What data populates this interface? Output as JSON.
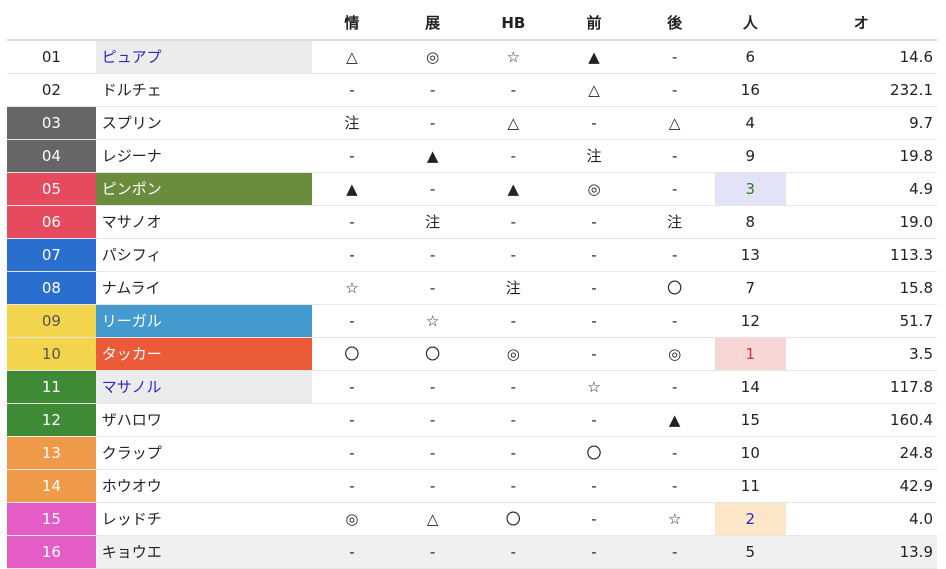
{
  "headers": [
    "",
    "",
    "情",
    "展",
    "HB",
    "前",
    "後",
    "人",
    "オ"
  ],
  "rows": [
    {
      "num": "01",
      "name": "ピュアプ",
      "marks": [
        "△",
        "◎",
        "☆",
        "▲",
        "-"
      ],
      "pop": "6",
      "odds": "14.6",
      "num_bg": "#ffffff",
      "num_color": "#222222",
      "name_bg": "#ececec",
      "name_color": "#2a2ac8",
      "pop_bg": "",
      "pop_color": ""
    },
    {
      "num": "02",
      "name": "ドルチェ",
      "marks": [
        "-",
        "-",
        "-",
        "△",
        "-"
      ],
      "pop": "16",
      "odds": "232.1",
      "num_bg": "#ffffff",
      "num_color": "#222222",
      "name_bg": "",
      "name_color": "",
      "pop_bg": "",
      "pop_color": ""
    },
    {
      "num": "03",
      "name": "スプリン",
      "marks": [
        "注",
        "-",
        "△",
        "-",
        "△"
      ],
      "pop": "4",
      "odds": "9.7",
      "num_bg": "#666666",
      "num_color": "#ffffff",
      "name_bg": "",
      "name_color": "",
      "pop_bg": "",
      "pop_color": ""
    },
    {
      "num": "04",
      "name": "レジーナ",
      "marks": [
        "-",
        "▲",
        "-",
        "注",
        "-"
      ],
      "pop": "9",
      "odds": "19.8",
      "num_bg": "#666666",
      "num_color": "#ffffff",
      "name_bg": "",
      "name_color": "",
      "pop_bg": "",
      "pop_color": ""
    },
    {
      "num": "05",
      "name": "ピンポン",
      "marks": [
        "▲",
        "-",
        "▲",
        "◎",
        "-"
      ],
      "pop": "3",
      "odds": "4.9",
      "num_bg": "#e54a5e",
      "num_color": "#ffffff",
      "name_bg": "#6a8c3c",
      "name_color": "#ffffff",
      "pop_bg": "#e3e3f8",
      "pop_color": "#2e7d2e"
    },
    {
      "num": "06",
      "name": "マサノオ",
      "marks": [
        "-",
        "注",
        "-",
        "-",
        "注"
      ],
      "pop": "8",
      "odds": "19.0",
      "num_bg": "#e54a5e",
      "num_color": "#ffffff",
      "name_bg": "",
      "name_color": "",
      "pop_bg": "",
      "pop_color": ""
    },
    {
      "num": "07",
      "name": "パシフィ",
      "marks": [
        "-",
        "-",
        "-",
        "-",
        "-"
      ],
      "pop": "13",
      "odds": "113.3",
      "num_bg": "#2a6ed0",
      "num_color": "#ffffff",
      "name_bg": "",
      "name_color": "",
      "pop_bg": "",
      "pop_color": ""
    },
    {
      "num": "08",
      "name": "ナムライ",
      "marks": [
        "☆",
        "-",
        "注",
        "-",
        "〇"
      ],
      "pop": "7",
      "odds": "15.8",
      "num_bg": "#2a6ed0",
      "num_color": "#ffffff",
      "name_bg": "",
      "name_color": "",
      "pop_bg": "",
      "pop_color": ""
    },
    {
      "num": "09",
      "name": "リーガル",
      "marks": [
        "-",
        "☆",
        "-",
        "-",
        "-"
      ],
      "pop": "12",
      "odds": "51.7",
      "num_bg": "#f2d54c",
      "num_color": "#555555",
      "name_bg": "#4499cf",
      "name_color": "#ffffff",
      "pop_bg": "",
      "pop_color": ""
    },
    {
      "num": "10",
      "name": "タッカー",
      "marks": [
        "〇",
        "〇",
        "◎",
        "-",
        "◎"
      ],
      "pop": "1",
      "odds": "3.5",
      "num_bg": "#f2d54c",
      "num_color": "#555555",
      "name_bg": "#ec5b38",
      "name_color": "#ffffff",
      "pop_bg": "#f8d6d6",
      "pop_color": "#e03030"
    },
    {
      "num": "11",
      "name": "マサノル",
      "marks": [
        "-",
        "-",
        "-",
        "☆",
        "-"
      ],
      "pop": "14",
      "odds": "117.8",
      "num_bg": "#3f8a34",
      "num_color": "#ffffff",
      "name_bg": "#ececec",
      "name_color": "#2a2ac8",
      "pop_bg": "",
      "pop_color": ""
    },
    {
      "num": "12",
      "name": "ザハロワ",
      "marks": [
        "-",
        "-",
        "-",
        "-",
        "▲"
      ],
      "pop": "15",
      "odds": "160.4",
      "num_bg": "#3f8a34",
      "num_color": "#ffffff",
      "name_bg": "",
      "name_color": "",
      "pop_bg": "",
      "pop_color": ""
    },
    {
      "num": "13",
      "name": "クラップ",
      "marks": [
        "-",
        "-",
        "-",
        "〇",
        "-"
      ],
      "pop": "10",
      "odds": "24.8",
      "num_bg": "#ee9a48",
      "num_color": "#ffffff",
      "name_bg": "",
      "name_color": "",
      "pop_bg": "",
      "pop_color": ""
    },
    {
      "num": "14",
      "name": "ホウオウ",
      "marks": [
        "-",
        "-",
        "-",
        "-",
        "-"
      ],
      "pop": "11",
      "odds": "42.9",
      "num_bg": "#ee9a48",
      "num_color": "#ffffff",
      "name_bg": "",
      "name_color": "",
      "pop_bg": "",
      "pop_color": ""
    },
    {
      "num": "15",
      "name": "レッドチ",
      "marks": [
        "◎",
        "△",
        "〇",
        "-",
        "☆"
      ],
      "pop": "2",
      "odds": "4.0",
      "num_bg": "#e45cc6",
      "num_color": "#ffffff",
      "name_bg": "",
      "name_color": "",
      "pop_bg": "#fbe6c8",
      "pop_color": "#2a2ac8"
    },
    {
      "num": "16",
      "name": "キョウエ",
      "marks": [
        "-",
        "-",
        "-",
        "-",
        "-"
      ],
      "pop": "5",
      "odds": "13.9",
      "num_bg": "#e45cc6",
      "num_color": "#ffffff",
      "name_bg": "",
      "name_color": "",
      "pop_bg": "",
      "pop_color": ""
    }
  ]
}
